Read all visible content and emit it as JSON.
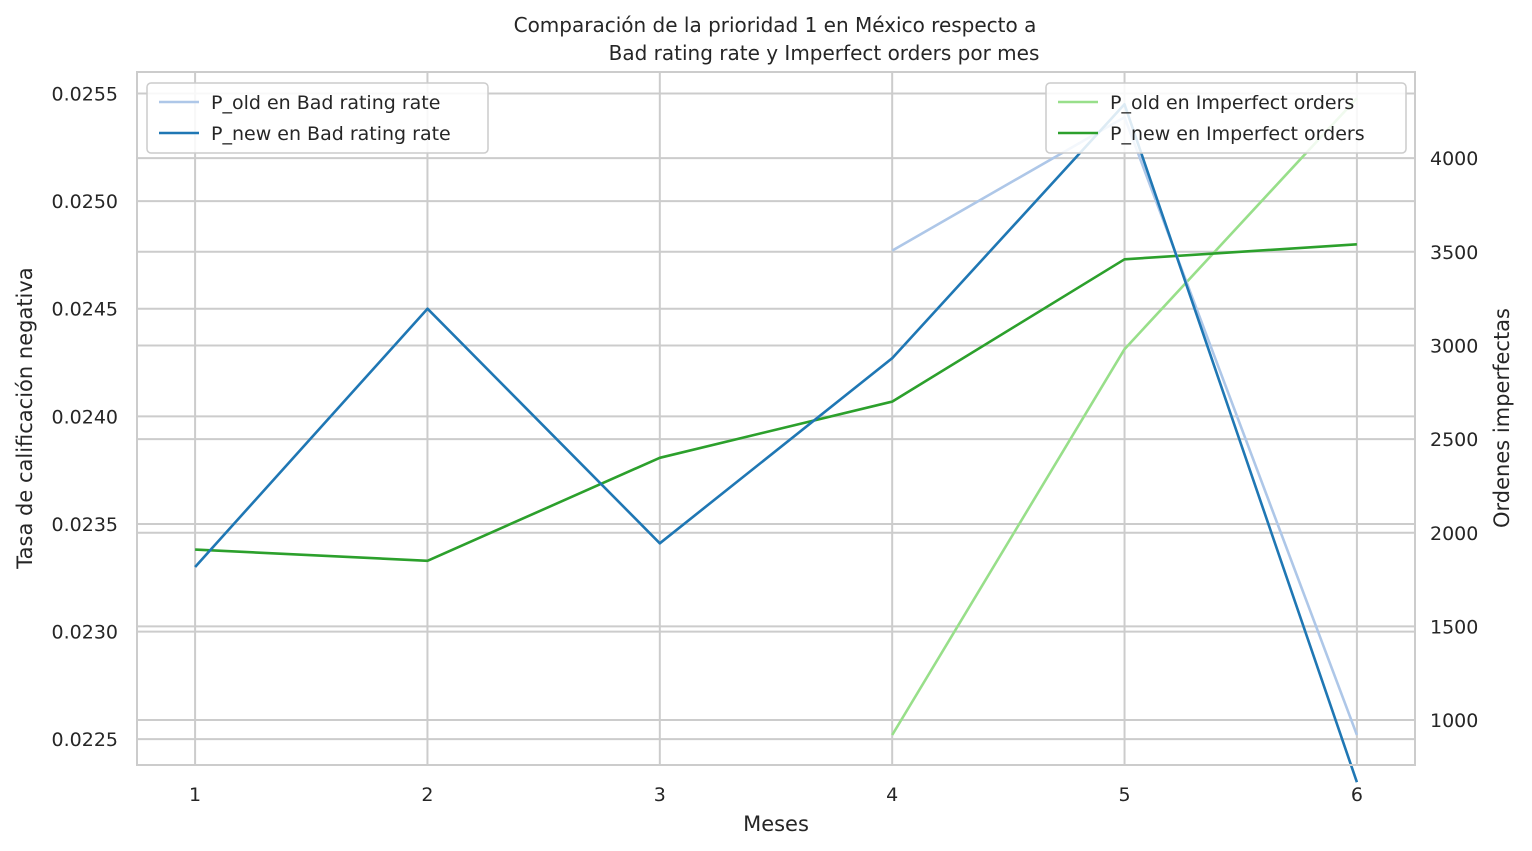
{
  "chart_data": {
    "type": "line",
    "title_line1": "Comparación de la prioridad 1 en México respecto a",
    "title_line2": "Bad rating rate y Imperfect orders por mes",
    "xlabel": "Meses",
    "ylabel_left": "Tasa de calificación negativa",
    "ylabel_right": "Ordenes imperfectas",
    "x": [
      1,
      2,
      3,
      4,
      5,
      6
    ],
    "x_ticks": [
      "1",
      "2",
      "3",
      "4",
      "5",
      "6"
    ],
    "xlim": [
      0.75,
      6.25
    ],
    "ylim_left": [
      0.02238,
      0.0256
    ],
    "ylim_right": [
      760,
      4460
    ],
    "yticks_left": [
      "0.0225",
      "0.0230",
      "0.0235",
      "0.0240",
      "0.0245",
      "0.0250",
      "0.0255"
    ],
    "yticks_left_values": [
      0.0225,
      0.023,
      0.0235,
      0.024,
      0.0245,
      0.025,
      0.0255
    ],
    "yticks_right": [
      "1000",
      "1500",
      "2000",
      "2500",
      "3000",
      "3500",
      "4000"
    ],
    "yticks_right_values": [
      1000,
      1500,
      2000,
      2500,
      3000,
      3500,
      4000
    ],
    "grid": true,
    "series_left": [
      {
        "name": "P_old en Bad rating rate",
        "color": "#aec7e8",
        "x": [
          4,
          5,
          6
        ],
        "values": [
          0.02477,
          0.02539,
          0.02252
        ]
      },
      {
        "name": "P_new en Bad rating rate",
        "color": "#1f77b4",
        "x": [
          1,
          2,
          3,
          4,
          5,
          6
        ],
        "values": [
          0.0233,
          0.0245,
          0.02341,
          0.02427,
          0.02545,
          0.0223
        ]
      }
    ],
    "series_right": [
      {
        "name": "P_old en Imperfect orders",
        "color": "#98df8a",
        "x": [
          4,
          5,
          6
        ],
        "values": [
          920,
          2980,
          4320
        ]
      },
      {
        "name": "P_new en Imperfect orders",
        "color": "#2ca02c",
        "x": [
          1,
          2,
          3,
          4,
          5,
          6
        ],
        "values": [
          1910,
          1850,
          2400,
          2700,
          3460,
          3540
        ]
      }
    ],
    "legend_left_placement": "top-left",
    "legend_right_placement": "top-right"
  }
}
